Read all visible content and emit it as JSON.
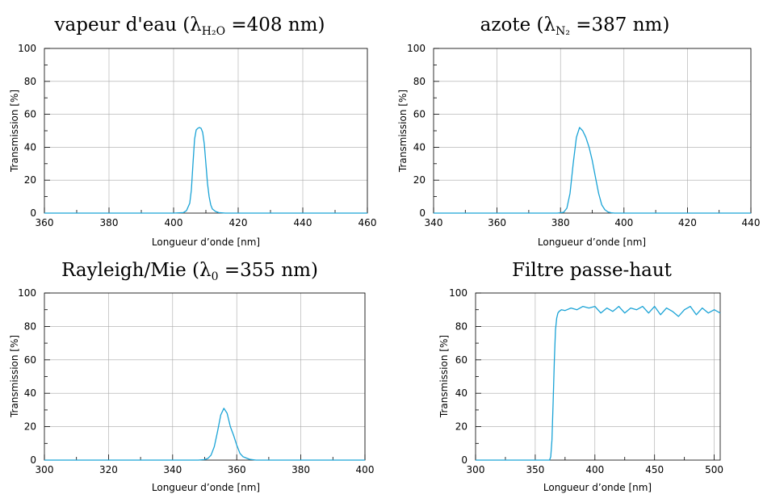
{
  "chart_data": [
    {
      "type": "line",
      "title": "vapeur d'eau (λ",
      "title_sub": "H₂O",
      "title_end": " =408 nm)",
      "xlabel": "Longueur d’onde [nm]",
      "ylabel": "Transmission [%]",
      "xlim": [
        360,
        460
      ],
      "ylim": [
        0,
        100
      ],
      "xticks": [
        360,
        380,
        400,
        420,
        440,
        460
      ],
      "yticks": [
        0,
        20,
        40,
        60,
        80,
        100
      ],
      "grid": true,
      "series": [
        {
          "x": [
            360,
            400,
            403,
            404,
            405,
            405.5,
            406,
            406.5,
            407,
            407.5,
            408,
            408.5,
            409,
            409.5,
            410,
            410.5,
            411,
            411.5,
            412,
            413,
            414,
            416,
            460
          ],
          "y": [
            0,
            0,
            0.3,
            1.5,
            6,
            14,
            30,
            45,
            50.5,
            51.5,
            52,
            51.5,
            49,
            42,
            30,
            18,
            10,
            5,
            2.5,
            1,
            0.3,
            0,
            0
          ]
        }
      ]
    },
    {
      "type": "line",
      "title": "azote (λ",
      "title_sub": "N₂",
      "title_end": " =387 nm)",
      "xlabel": "Longueur d’onde [nm]",
      "ylabel": "Transmission [%]",
      "xlim": [
        340,
        440
      ],
      "ylim": [
        0,
        100
      ],
      "xticks": [
        340,
        360,
        380,
        400,
        420,
        440
      ],
      "yticks": [
        0,
        20,
        40,
        60,
        80,
        100
      ],
      "grid": true,
      "series": [
        {
          "x": [
            340,
            379,
            381,
            382,
            383,
            384,
            385,
            386,
            387,
            388,
            389,
            390,
            391,
            392,
            393,
            394,
            395,
            396,
            397,
            440
          ],
          "y": [
            0,
            0,
            0.5,
            3,
            12,
            30,
            46,
            52,
            50,
            46,
            40,
            32,
            22,
            12,
            5,
            2,
            0.7,
            0.2,
            0,
            0
          ]
        }
      ]
    },
    {
      "type": "line",
      "title": "Rayleigh/Mie (λ",
      "title_sub": "0",
      "title_end": " =355 nm)",
      "xlabel": "Longueur d’onde [nm]",
      "ylabel": "Transmission [%]",
      "xlim": [
        300,
        400
      ],
      "ylim": [
        0,
        100
      ],
      "xticks": [
        300,
        320,
        340,
        360,
        380,
        400
      ],
      "yticks": [
        0,
        20,
        40,
        60,
        80,
        100
      ],
      "grid": true,
      "series": [
        {
          "x": [
            300,
            348,
            350,
            351,
            352,
            353,
            354,
            355,
            356,
            357,
            358,
            359,
            360,
            361,
            362,
            364,
            366,
            400
          ],
          "y": [
            0,
            0,
            0.3,
            1,
            3,
            8,
            17,
            27,
            31,
            28,
            20,
            15,
            9,
            4,
            2,
            0.5,
            0,
            0
          ]
        }
      ]
    },
    {
      "type": "line",
      "title": "Filtre passe-haut",
      "title_sub": "",
      "title_end": "",
      "xlabel": "Longueur d’onde [nm]",
      "ylabel": "Transmission [%]",
      "xlim": [
        300,
        505
      ],
      "ylim": [
        0,
        100
      ],
      "xticks": [
        300,
        350,
        400,
        450,
        500
      ],
      "yticks": [
        0,
        20,
        40,
        60,
        80,
        100
      ],
      "grid": true,
      "series": [
        {
          "x": [
            300,
            362,
            363,
            364,
            365,
            366,
            367,
            368,
            369,
            370,
            372,
            375,
            380,
            385,
            390,
            395,
            400,
            405,
            410,
            415,
            420,
            425,
            430,
            435,
            440,
            445,
            450,
            455,
            460,
            465,
            470,
            475,
            480,
            485,
            490,
            495,
            500,
            505
          ],
          "y": [
            0,
            0,
            2,
            12,
            35,
            60,
            78,
            85,
            88,
            89,
            90,
            89.5,
            91,
            90,
            92,
            91,
            92,
            88,
            91,
            89,
            92,
            88,
            91,
            90,
            92,
            88,
            92,
            87,
            91,
            89,
            86,
            90,
            92,
            87,
            91,
            88,
            90,
            88
          ]
        }
      ]
    }
  ]
}
